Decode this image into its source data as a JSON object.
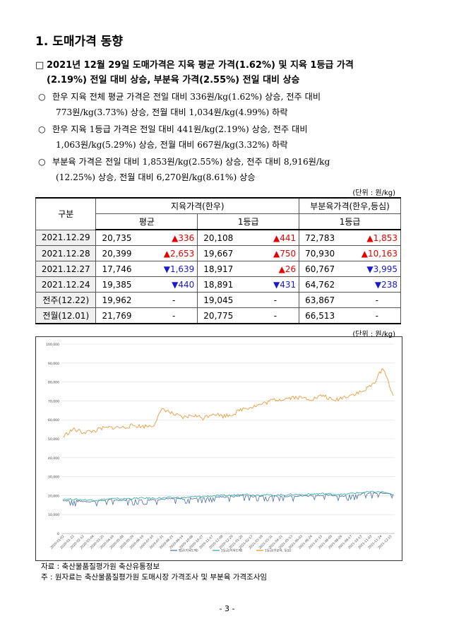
{
  "section_title": "1. 도매가격 동향",
  "headline": {
    "marker": "□",
    "line1": "2021년 12월 29일 도매가격은 지육 평균 가격(1.62%) 및 지육 1등급 가격",
    "line2": "(2.19%) 전일 대비 상승, 부분육 가격(2.55%) 전일 대비 상승"
  },
  "bullets": [
    {
      "marker": "○",
      "line1": "한우 지육 전체 평균 가격은 전일 대비 336원/kg(1.62%) 상승, 전주 대비",
      "line2": "773원/kg(3.73%) 상승, 전월 대비 1,034원/kg(4.99%) 하락"
    },
    {
      "marker": "○",
      "line1": "한우 지육 1등급 가격은 전일 대비 441원/kg(2.19%) 상승, 전주 대비",
      "line2": "1,063원/kg(5.29%) 상승, 전월 대비 667원/kg(3.32%) 하락"
    },
    {
      "marker": "○",
      "line1": "부분육 가격은 전일 대비 1,853원/kg(2.55%) 상승, 전주 대비 8,916원/kg",
      "line2": "(12.25%) 상승, 전월 대비 6,270원/kg(8.61%) 상승"
    }
  ],
  "unit_label": "(단위 : 원/kg)",
  "table": {
    "h_gubun": "구분",
    "h_carcass": "지육가격(한우)",
    "h_cut": "부분육가격(한우,등심)",
    "h_avg": "평균",
    "h_grade1a": "1등급",
    "h_grade1b": "1등급",
    "rows": [
      {
        "date": "2021.12.29",
        "avg": "20,735",
        "avg_chg": "336",
        "avg_dir": "up",
        "g1": "20,108",
        "g1_chg": "441",
        "g1_dir": "up",
        "cut": "72,783",
        "cut_chg": "1,853",
        "cut_dir": "up"
      },
      {
        "date": "2021.12.28",
        "avg": "20,399",
        "avg_chg": "2,653",
        "avg_dir": "up",
        "g1": "19,667",
        "g1_chg": "750",
        "g1_dir": "up",
        "cut": "70,930",
        "cut_chg": "10,163",
        "cut_dir": "up"
      },
      {
        "date": "2021.12.27",
        "avg": "17,746",
        "avg_chg": "1,639",
        "avg_dir": "down",
        "g1": "18,917",
        "g1_chg": "26",
        "g1_dir": "up",
        "cut": "60,767",
        "cut_chg": "3,995",
        "cut_dir": "down"
      },
      {
        "date": "2021.12.24",
        "avg": "19,385",
        "avg_chg": "440",
        "avg_dir": "down",
        "g1": "18,891",
        "g1_chg": "431",
        "g1_dir": "down",
        "cut": "64,762",
        "cut_chg": "238",
        "cut_dir": "down"
      },
      {
        "date": "전주(12.22)",
        "avg": "19,962",
        "avg_chg": "-",
        "avg_dir": "none",
        "g1": "19,045",
        "g1_chg": "-",
        "g1_dir": "none",
        "cut": "63,867",
        "cut_chg": "-",
        "cut_dir": "none"
      },
      {
        "date": "전월(12.01)",
        "avg": "21,769",
        "avg_chg": "-",
        "avg_dir": "none",
        "g1": "20,775",
        "g1_chg": "-",
        "g1_dir": "none",
        "cut": "66,513",
        "cut_chg": "-",
        "cut_dir": "none"
      }
    ]
  },
  "chart_unit_label": "(단위 : 원/kg)",
  "colors": {
    "up": "#e60000",
    "down": "#1a1acc",
    "avg_line": "#4a6fa5",
    "grade1_line": "#2aa6a0",
    "cut_line": "#e8902a"
  },
  "chart_data": {
    "type": "line",
    "ylim": [
      0,
      100000
    ],
    "y_ticks": [
      "0",
      "10,000",
      "20,000",
      "30,000",
      "40,000",
      "50,000",
      "60,000",
      "70,000",
      "80,000",
      "90,000",
      "100,000"
    ],
    "x_ticks": [
      "2020-01-02",
      "2020-01-22",
      "2020-02-12",
      "2020-03-04",
      "2020-03-25",
      "2020-04-16",
      "2020-05-08",
      "2020-05-29",
      "2020-06-19",
      "2020-07-10",
      "2020-07-31",
      "2020-08-21",
      "2020-09-14",
      "2020-10-06",
      "2020-10-27",
      "2020-11-17",
      "2020-12-08",
      "2020-12-29",
      "2021-01-20",
      "2021-02-17",
      "2021-03-10",
      "2021-03-31",
      "2021-04-21",
      "2021-05-13",
      "2021-06-03",
      "2021-06-24",
      "2021-07-15",
      "2021-08-05",
      "2021-08-26",
      "2021-09-17",
      "2021-10-13",
      "2021-11-03",
      "2021-11-24",
      "2021-12-15"
    ],
    "series": [
      {
        "name": "평균(지육도매)",
        "values": [
          17500,
          17200,
          17000,
          16900,
          17400,
          17800,
          17600,
          17800,
          18000,
          17900,
          18100,
          18300,
          18200,
          18600,
          18900,
          19200,
          19300,
          19500,
          20200,
          19600,
          19800,
          19500,
          19700,
          19900,
          19800,
          20100,
          20300,
          20100,
          19800,
          20600,
          21000,
          21300,
          21200,
          20735
        ]
      },
      {
        "name": "1등급(지육도매)",
        "values": [
          18200,
          18000,
          17800,
          17600,
          18000,
          18400,
          18300,
          18500,
          18700,
          18600,
          18800,
          19000,
          18900,
          19300,
          19600,
          19900,
          20000,
          20200,
          20900,
          20300,
          20500,
          20200,
          20400,
          20600,
          20500,
          20800,
          21000,
          20800,
          20500,
          21300,
          21700,
          22000,
          21900,
          20108
        ]
      },
      {
        "name": "1등급(부분육, 등심)",
        "values": [
          51000,
          55000,
          53500,
          54000,
          55500,
          56000,
          56000,
          57000,
          56500,
          57000,
          66000,
          63000,
          61000,
          62500,
          61000,
          63500,
          62000,
          63000,
          66000,
          67000,
          68500,
          70500,
          71000,
          72000,
          71500,
          71000,
          73000,
          70000,
          72000,
          73500,
          75000,
          79000,
          87500,
          72783
        ]
      }
    ]
  },
  "source_line1": "자료 : 축산물품질평가원 축산유통정보",
  "source_line2": "주 : 원자료는 축산물품질평가원 도매시장 가격조사 및 부분육 가격조사임",
  "page_number": "- 3 -"
}
